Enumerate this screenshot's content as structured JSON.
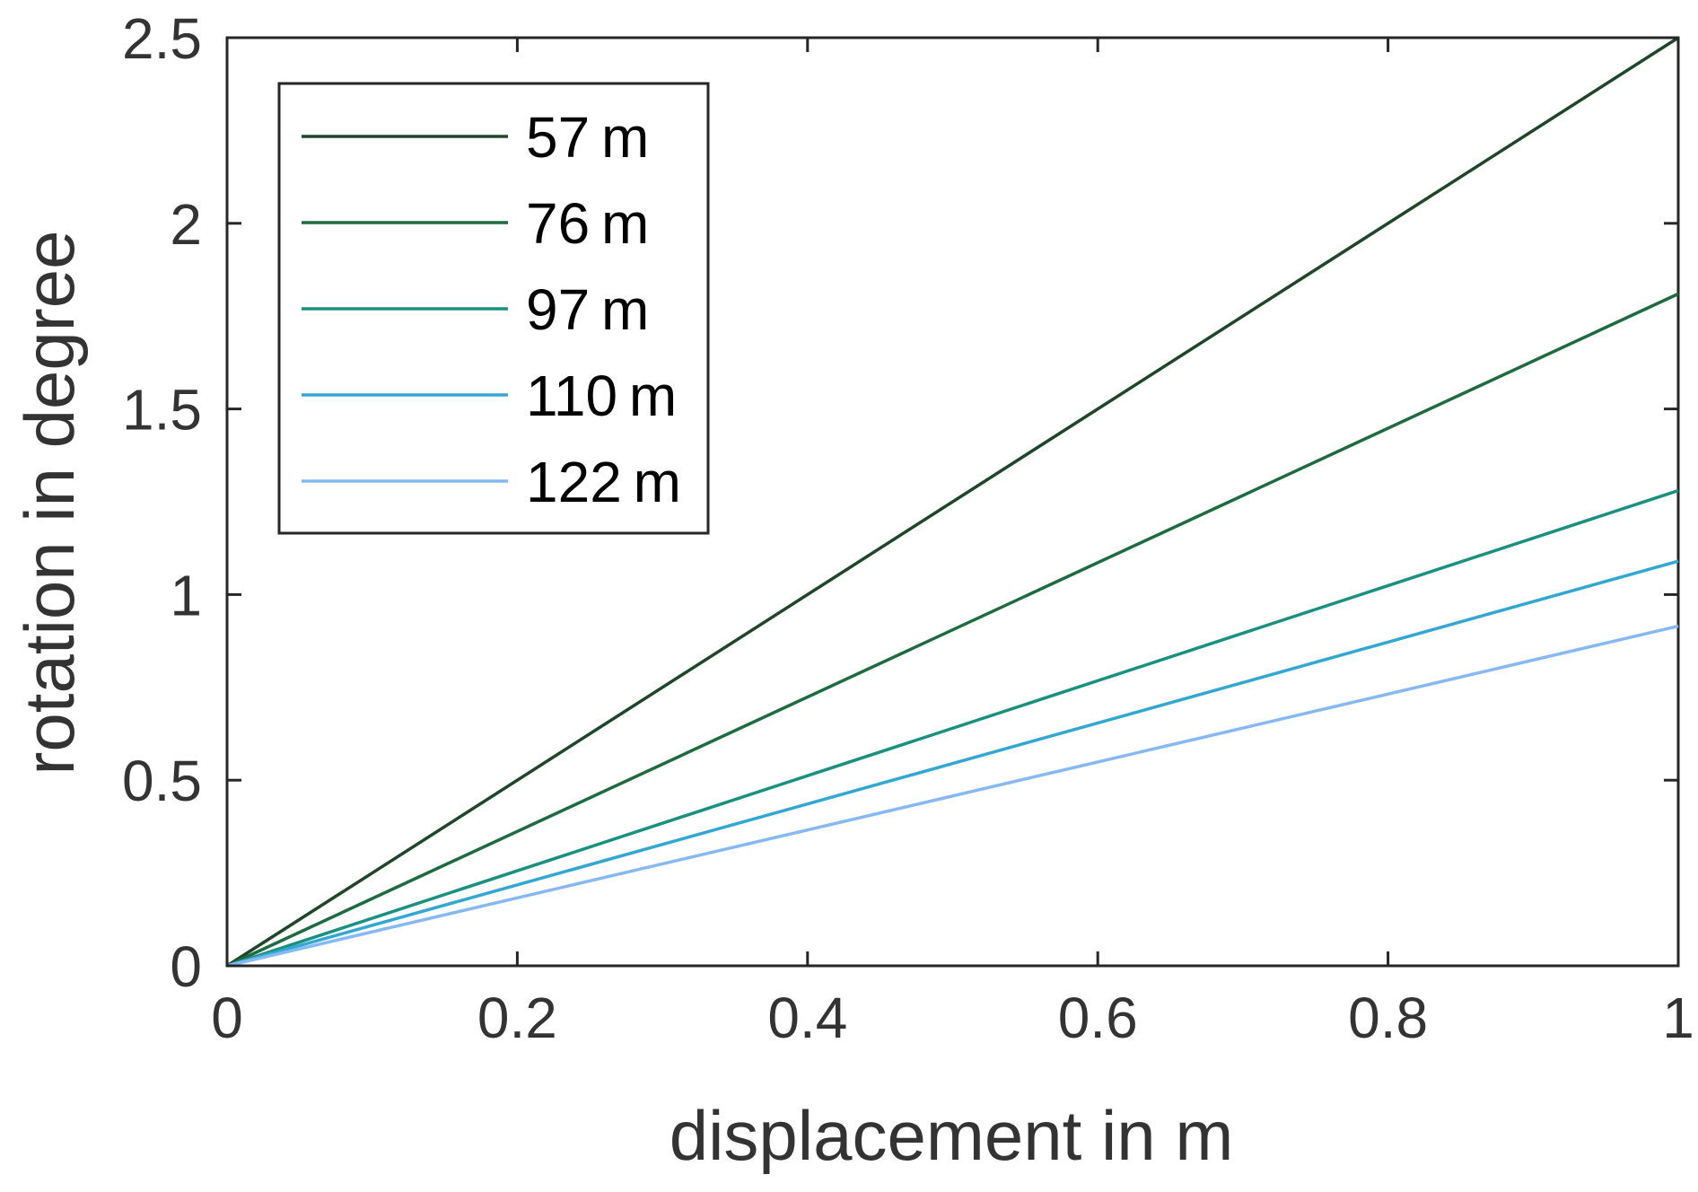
{
  "chart_data": {
    "type": "line",
    "title": "",
    "xlabel": "displacement in m",
    "ylabel": "rotation in degree",
    "xlim": [
      0,
      1
    ],
    "ylim": [
      0,
      2.5
    ],
    "x_ticks": [
      "0",
      "0.2",
      "0.4",
      "0.6",
      "0.8",
      "1"
    ],
    "y_ticks": [
      "0",
      "0.5",
      "1",
      "1.5",
      "2",
      "2.5"
    ],
    "grid": false,
    "legend_position": "top-left",
    "x": [
      0,
      1
    ],
    "series": [
      {
        "name": "57 m",
        "values": [
          0,
          2.5
        ],
        "color": "#1e4628"
      },
      {
        "name": "76 m",
        "values": [
          0,
          1.81
        ],
        "color": "#1d6b3f"
      },
      {
        "name": "97 m",
        "values": [
          0,
          1.28
        ],
        "color": "#1a9180"
      },
      {
        "name": "110 m",
        "values": [
          0,
          1.09
        ],
        "color": "#33a7d4"
      },
      {
        "name": "122 m",
        "values": [
          0,
          0.915
        ],
        "color": "#86b9f4"
      }
    ]
  }
}
